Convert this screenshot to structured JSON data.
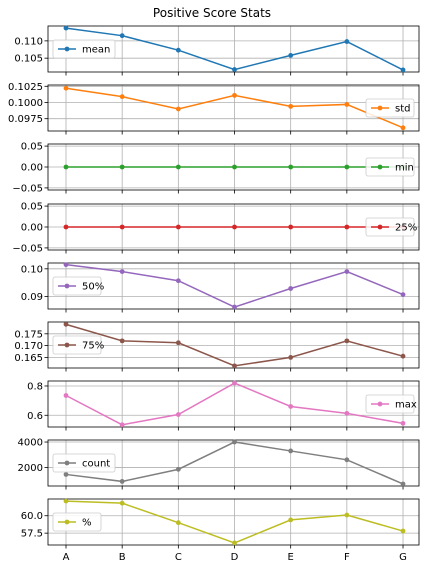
{
  "chart_data": {
    "type": "line",
    "title": "Positive Score Stats",
    "categories": [
      "A",
      "B",
      "C",
      "D",
      "E",
      "F",
      "G"
    ],
    "xlabel": "",
    "grid": true,
    "legend_placement": "per-panel",
    "series": [
      {
        "name": "mean",
        "color": "#1f77b4",
        "values": [
          0.1137,
          0.1115,
          0.1073,
          0.1017,
          0.1058,
          0.1098,
          0.1016
        ],
        "ylim": [
          0.101,
          0.1143
        ],
        "yticks": [
          0.105,
          0.11
        ],
        "ytick_labels": [
          "0.105",
          "0.110"
        ],
        "legend_loc": "left"
      },
      {
        "name": "std",
        "color": "#ff7f0e",
        "values": [
          0.1022,
          0.1009,
          0.099,
          0.1011,
          0.0994,
          0.0997,
          0.0961
        ],
        "ylim": [
          0.0956,
          0.1027
        ],
        "yticks": [
          0.0975,
          0.1,
          0.1025
        ],
        "ytick_labels": [
          "0.0975",
          "0.1000",
          "0.1025"
        ],
        "legend_loc": "right"
      },
      {
        "name": "min",
        "color": "#2ca02c",
        "values": [
          0,
          0,
          0,
          0,
          0,
          0,
          0
        ],
        "ylim": [
          -0.055,
          0.055
        ],
        "yticks": [
          -0.05,
          0.0,
          0.05
        ],
        "ytick_labels": [
          "−0.05",
          "0.00",
          "0.05"
        ],
        "legend_loc": "right"
      },
      {
        "name": "25%",
        "color": "#d62728",
        "values": [
          0,
          0,
          0,
          0,
          0,
          0,
          0
        ],
        "ylim": [
          -0.055,
          0.055
        ],
        "yticks": [
          -0.05,
          0.0,
          0.05
        ],
        "ytick_labels": [
          "−0.05",
          "0.00",
          "0.05"
        ],
        "legend_loc": "right"
      },
      {
        "name": "50%",
        "color": "#9467bd",
        "values": [
          0.1015,
          0.099,
          0.0957,
          0.0862,
          0.0929,
          0.099,
          0.0907
        ],
        "ylim": [
          0.0855,
          0.1021
        ],
        "yticks": [
          0.09,
          0.1
        ],
        "ytick_labels": [
          "0.09",
          "0.10"
        ],
        "legend_loc": "left"
      },
      {
        "name": "75%",
        "color": "#8c564b",
        "values": [
          0.179,
          0.172,
          0.1712,
          0.1614,
          0.165,
          0.172,
          0.1655
        ],
        "ylim": [
          0.1605,
          0.18
        ],
        "yticks": [
          0.165,
          0.17,
          0.175
        ],
        "ytick_labels": [
          "0.165",
          "0.170",
          "0.175"
        ],
        "legend_loc": "left"
      },
      {
        "name": "max",
        "color": "#e377c2",
        "values": [
          0.735,
          0.535,
          0.605,
          0.82,
          0.66,
          0.613,
          0.545
        ],
        "ylim": [
          0.52,
          0.834
        ],
        "yticks": [
          0.6,
          0.8
        ],
        "ytick_labels": [
          "0.6",
          "0.8"
        ],
        "legend_loc": "right"
      },
      {
        "name": "count",
        "color": "#7f7f7f",
        "values": [
          1450,
          900,
          1850,
          4000,
          3300,
          2600,
          700
        ],
        "ylim": [
          540,
          4160
        ],
        "yticks": [
          2000,
          4000
        ],
        "ytick_labels": [
          "2000",
          "4000"
        ],
        "legend_loc": "left"
      },
      {
        "name": "%",
        "color": "#bcbd22",
        "values": [
          62.1,
          61.8,
          59.0,
          56.1,
          59.4,
          60.1,
          57.8
        ],
        "ylim": [
          55.8,
          62.4
        ],
        "yticks": [
          57.5,
          60.0
        ],
        "ytick_labels": [
          "57.5",
          "60.0"
        ],
        "legend_loc": "left"
      }
    ]
  }
}
